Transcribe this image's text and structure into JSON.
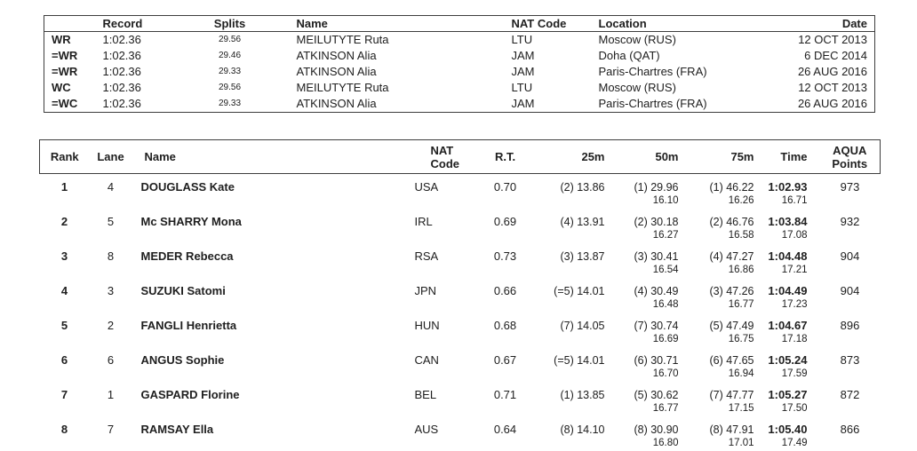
{
  "records_table": {
    "headers": {
      "record": "Record",
      "splits": "Splits",
      "name": "Name",
      "nat": "NAT Code",
      "location": "Location",
      "date": "Date"
    },
    "rows": [
      {
        "type": "WR",
        "record": "1:02.36",
        "splits": "29.56",
        "name": "MEILUTYTE Ruta",
        "nat": "LTU",
        "location": "Moscow (RUS)",
        "date": "12 OCT 2013"
      },
      {
        "type": "=WR",
        "record": "1:02.36",
        "splits": "29.46",
        "name": "ATKINSON Alia",
        "nat": "JAM",
        "location": "Doha (QAT)",
        "date": "6 DEC 2014"
      },
      {
        "type": "=WR",
        "record": "1:02.36",
        "splits": "29.33",
        "name": "ATKINSON Alia",
        "nat": "JAM",
        "location": "Paris-Chartres (FRA)",
        "date": "26 AUG 2016"
      },
      {
        "type": "WC",
        "record": "1:02.36",
        "splits": "29.56",
        "name": "MEILUTYTE Ruta",
        "nat": "LTU",
        "location": "Moscow (RUS)",
        "date": "12 OCT 2013"
      },
      {
        "type": "=WC",
        "record": "1:02.36",
        "splits": "29.33",
        "name": "ATKINSON Alia",
        "nat": "JAM",
        "location": "Paris-Chartres (FRA)",
        "date": "26 AUG 2016"
      }
    ]
  },
  "results_table": {
    "headers": {
      "rank": "Rank",
      "lane": "Lane",
      "name": "Name",
      "nat": "NAT Code",
      "rt": "R.T.",
      "m25": "25m",
      "m50": "50m",
      "m75": "75m",
      "time": "Time",
      "points": "AQUA Points"
    },
    "rows": [
      {
        "rank": "1",
        "lane": "4",
        "name": "DOUGLASS Kate",
        "nat": "USA",
        "rt": "0.70",
        "m25": "(2) 13.86",
        "m50": "(1) 29.96",
        "m50_split": "16.10",
        "m75": "(1) 46.22",
        "m75_split": "16.26",
        "time": "1:02.93",
        "time_split": "16.71",
        "points": "973"
      },
      {
        "rank": "2",
        "lane": "5",
        "name": "Mc SHARRY Mona",
        "nat": "IRL",
        "rt": "0.69",
        "m25": "(4) 13.91",
        "m50": "(2) 30.18",
        "m50_split": "16.27",
        "m75": "(2) 46.76",
        "m75_split": "16.58",
        "time": "1:03.84",
        "time_split": "17.08",
        "points": "932"
      },
      {
        "rank": "3",
        "lane": "8",
        "name": "MEDER Rebecca",
        "nat": "RSA",
        "rt": "0.73",
        "m25": "(3) 13.87",
        "m50": "(3) 30.41",
        "m50_split": "16.54",
        "m75": "(4) 47.27",
        "m75_split": "16.86",
        "time": "1:04.48",
        "time_split": "17.21",
        "points": "904"
      },
      {
        "rank": "4",
        "lane": "3",
        "name": "SUZUKI Satomi",
        "nat": "JPN",
        "rt": "0.66",
        "m25": "(=5) 14.01",
        "m50": "(4) 30.49",
        "m50_split": "16.48",
        "m75": "(3) 47.26",
        "m75_split": "16.77",
        "time": "1:04.49",
        "time_split": "17.23",
        "points": "904"
      },
      {
        "rank": "5",
        "lane": "2",
        "name": "FANGLI Henrietta",
        "nat": "HUN",
        "rt": "0.68",
        "m25": "(7) 14.05",
        "m50": "(7) 30.74",
        "m50_split": "16.69",
        "m75": "(5) 47.49",
        "m75_split": "16.75",
        "time": "1:04.67",
        "time_split": "17.18",
        "points": "896"
      },
      {
        "rank": "6",
        "lane": "6",
        "name": "ANGUS Sophie",
        "nat": "CAN",
        "rt": "0.67",
        "m25": "(=5) 14.01",
        "m50": "(6) 30.71",
        "m50_split": "16.70",
        "m75": "(6) 47.65",
        "m75_split": "16.94",
        "time": "1:05.24",
        "time_split": "17.59",
        "points": "873"
      },
      {
        "rank": "7",
        "lane": "1",
        "name": "GASPARD Florine",
        "nat": "BEL",
        "rt": "0.71",
        "m25": "(1) 13.85",
        "m50": "(5) 30.62",
        "m50_split": "16.77",
        "m75": "(7) 47.77",
        "m75_split": "17.15",
        "time": "1:05.27",
        "time_split": "17.50",
        "points": "872"
      },
      {
        "rank": "8",
        "lane": "7",
        "name": "RAMSAY Ella",
        "nat": "AUS",
        "rt": "0.64",
        "m25": "(8) 14.10",
        "m50": "(8) 30.90",
        "m50_split": "16.80",
        "m75": "(8) 47.91",
        "m75_split": "17.01",
        "time": "1:05.40",
        "time_split": "17.49",
        "points": "866"
      }
    ]
  }
}
